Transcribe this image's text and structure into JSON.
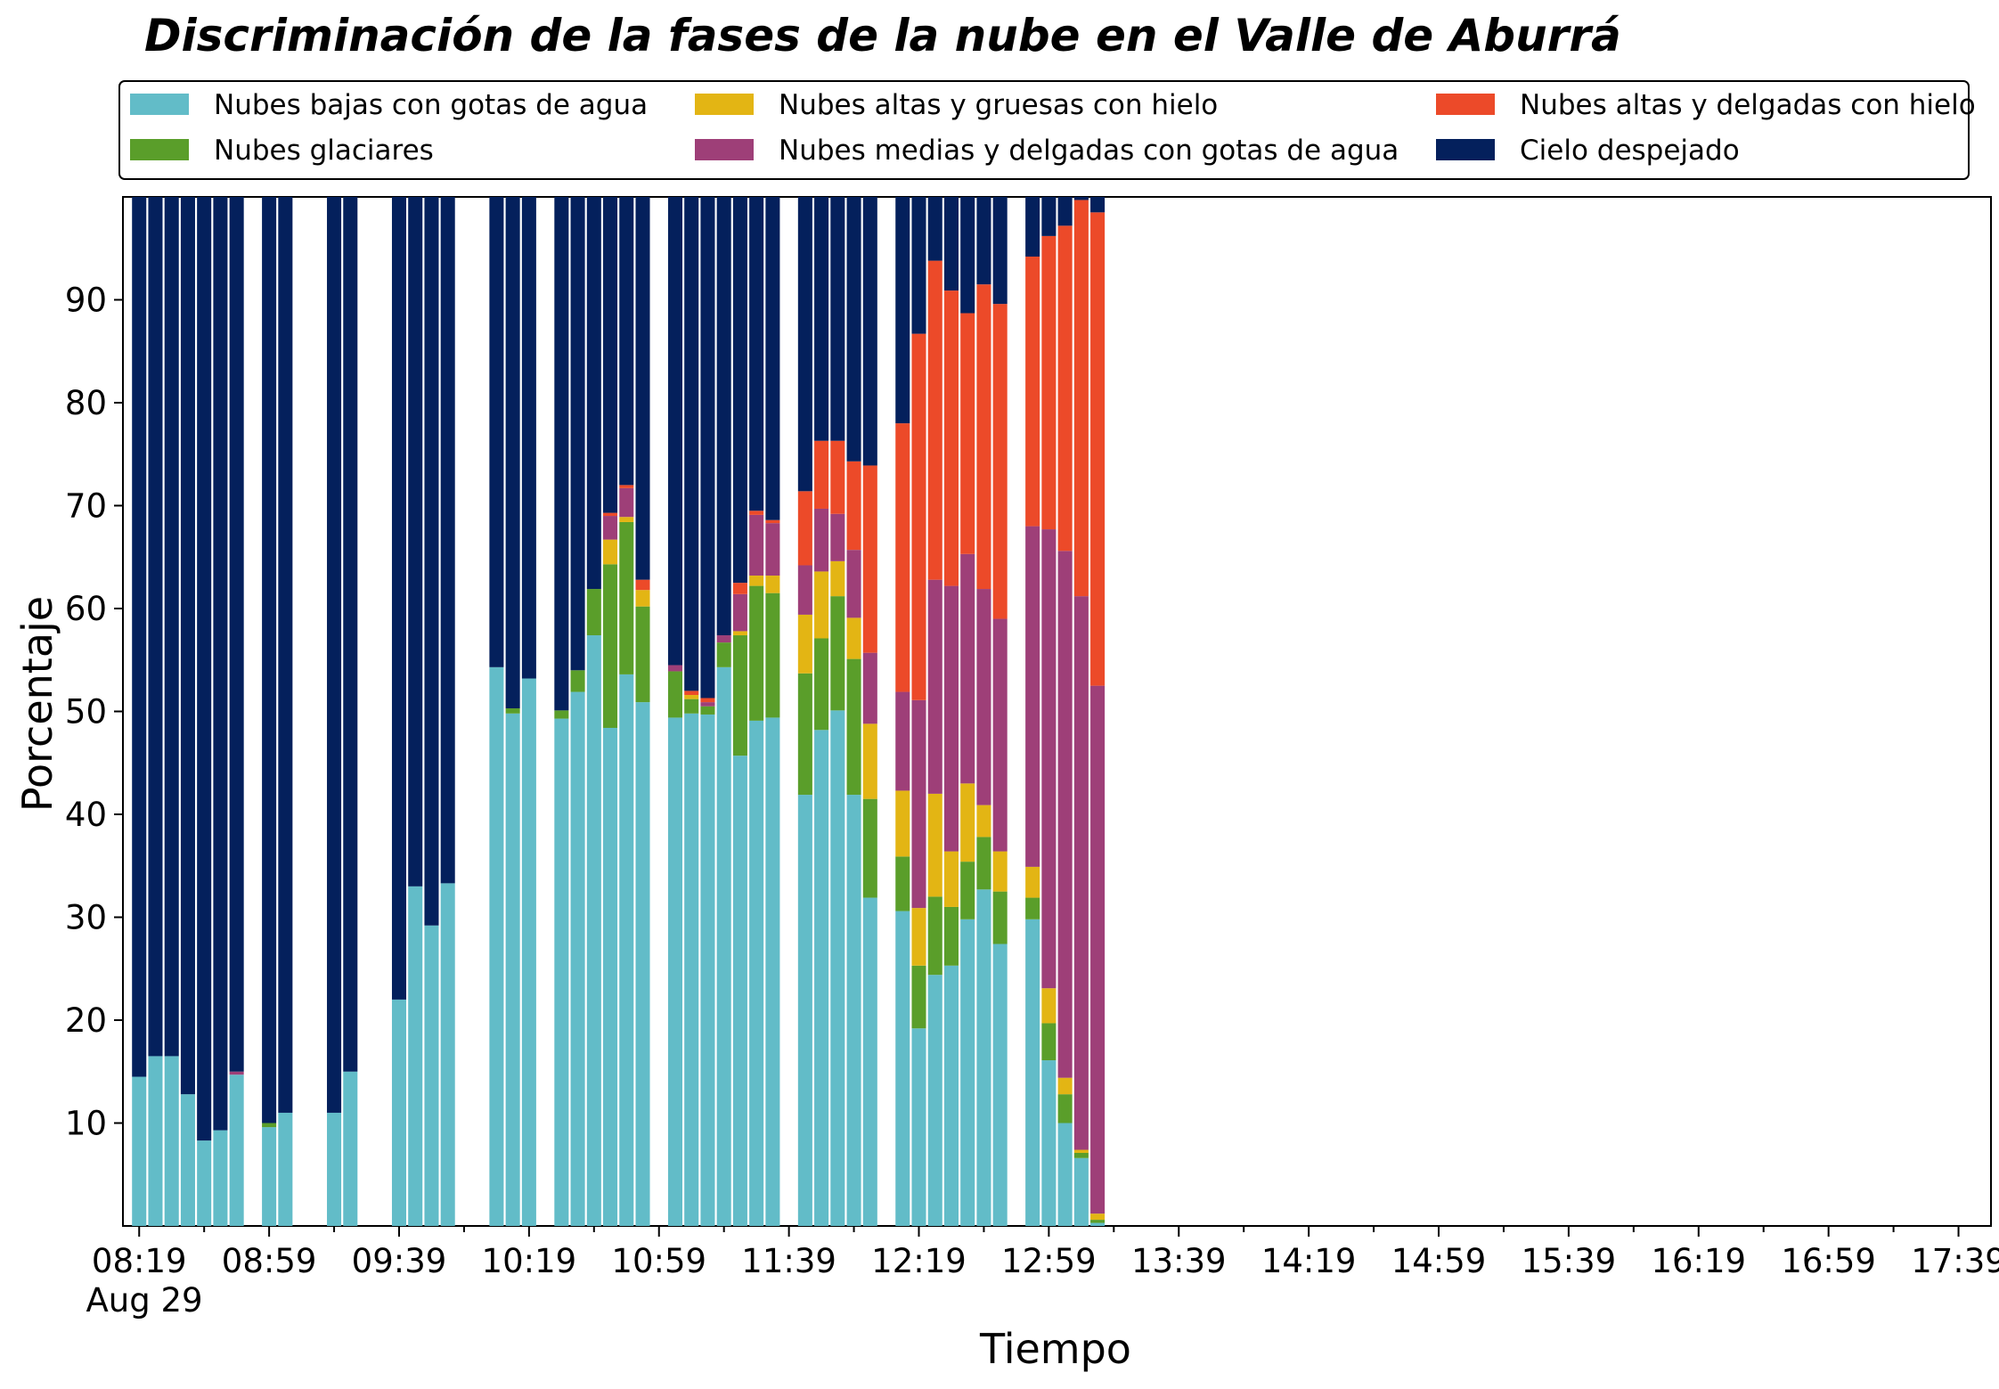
{
  "chart_data": {
    "type": "bar",
    "stacked": true,
    "title": "Discriminación de la fases de la nube en el Valle de Aburrá",
    "xlabel": "Tiempo",
    "ylabel": "Porcentaje",
    "ylim": [
      0,
      100
    ],
    "yticks": [
      10,
      20,
      30,
      40,
      50,
      60,
      70,
      80,
      90
    ],
    "x_time_range": [
      "08:14",
      "17:49"
    ],
    "x_interval_minutes": 5,
    "x_tick_labels": [
      "08:19",
      "08:59",
      "09:39",
      "10:19",
      "10:59",
      "11:39",
      "12:19",
      "12:59",
      "13:39",
      "14:19",
      "14:59",
      "15:39",
      "16:19",
      "16:59",
      "17:39"
    ],
    "x_date_label": "Aug 29",
    "grid": false,
    "legend_position": "top",
    "x": [
      "08:19",
      "08:24",
      "08:29",
      "08:34",
      "08:39",
      "08:44",
      "08:49",
      "08:59",
      "09:04",
      "09:19",
      "09:24",
      "09:39",
      "09:44",
      "09:49",
      "09:54",
      "10:09",
      "10:14",
      "10:19",
      "10:29",
      "10:34",
      "10:39",
      "10:44",
      "10:49",
      "10:54",
      "11:04",
      "11:09",
      "11:14",
      "11:19",
      "11:24",
      "11:29",
      "11:34",
      "11:44",
      "11:49",
      "11:54",
      "11:59",
      "12:04",
      "12:14",
      "12:19",
      "12:24",
      "12:29",
      "12:34",
      "12:39",
      "12:44",
      "12:54",
      "12:59",
      "13:04",
      "13:09",
      "13:14",
      "13:19",
      "13:24",
      "13:29",
      "13:34",
      "13:39",
      "13:44",
      "13:49",
      "13:54",
      "13:59",
      "14:04",
      "14:09",
      "14:14",
      "14:19",
      "14:24",
      "14:29",
      "14:34",
      "14:39",
      "14:44",
      "14:49",
      "14:54",
      "14:59",
      "15:04"
    ],
    "series": [
      {
        "name": "Nubes bajas con gotas de agua",
        "color": "#62BCC8",
        "values": [
          14.5,
          16.5,
          16.5,
          12.8,
          8.3,
          9.3,
          14.7,
          9.6,
          11.0,
          11.0,
          15.0,
          22.0,
          33.0,
          29.2,
          33.3,
          54.3,
          49.8,
          53.2,
          49.3,
          51.9,
          57.4,
          48.4,
          53.6,
          50.9,
          49.4,
          49.8,
          49.7,
          54.3,
          45.7,
          49.1,
          49.4,
          41.9,
          48.2,
          50.1,
          41.9,
          31.9,
          30.6,
          19.2,
          24.4,
          25.3,
          29.8,
          32.7,
          27.4,
          29.8,
          16.1,
          10.0,
          6.6,
          0.3,
          0,
          0,
          0,
          0,
          0,
          0,
          0,
          0,
          0,
          0,
          0,
          0,
          0,
          0,
          0,
          0,
          0,
          0,
          0,
          0,
          0,
          0
        ]
      },
      {
        "name": "Nubes glaciares",
        "color": "#5A9E2A",
        "values": [
          0,
          0,
          0,
          0,
          0,
          0,
          0,
          0.4,
          0,
          0,
          0,
          0,
          0,
          0,
          0,
          0,
          0.5,
          0,
          0.8,
          2.1,
          4.5,
          15.9,
          14.8,
          9.3,
          4.5,
          1.4,
          0.8,
          2.4,
          11.7,
          13.1,
          12.1,
          11.8,
          8.9,
          11.1,
          13.2,
          9.6,
          5.3,
          6.1,
          7.6,
          5.7,
          5.6,
          5.1,
          5.1,
          2.1,
          3.6,
          2.8,
          0.5,
          0.3,
          0,
          0,
          0,
          0,
          0,
          0,
          0,
          0,
          0,
          0,
          0,
          0,
          0,
          0,
          0,
          0,
          0,
          0,
          0,
          0,
          0,
          0
        ]
      },
      {
        "name": "Nubes altas y gruesas con hielo",
        "color": "#E3B514",
        "values": [
          0,
          0,
          0,
          0,
          0,
          0,
          0,
          0,
          0,
          0,
          0,
          0,
          0,
          0,
          0,
          0,
          0,
          0,
          0,
          0,
          0,
          2.4,
          0.5,
          1.6,
          0,
          0.4,
          0,
          0,
          0.4,
          1.0,
          1.7,
          5.7,
          6.5,
          3.4,
          4.0,
          7.3,
          6.4,
          5.6,
          10.0,
          5.4,
          7.6,
          3.1,
          3.9,
          3.0,
          3.4,
          1.6,
          0.3,
          0.6,
          0,
          0,
          0,
          0,
          0,
          0,
          0,
          0,
          0,
          0,
          0,
          0,
          0,
          0,
          0,
          0,
          0,
          0,
          0,
          0,
          0,
          0
        ]
      },
      {
        "name": "Nubes medias y delgadas con gotas de agua",
        "color": "#9E3F78",
        "values": [
          0,
          0,
          0,
          0,
          0,
          0,
          0.3,
          0,
          0,
          0,
          0,
          0,
          0,
          0,
          0,
          0,
          0,
          0,
          0,
          0,
          0,
          2.3,
          2.8,
          0,
          0.6,
          0,
          0.4,
          0.7,
          3.6,
          5.9,
          5.1,
          4.8,
          6.1,
          4.6,
          6.6,
          6.9,
          9.6,
          20.2,
          20.8,
          25.8,
          22.3,
          21.0,
          22.6,
          33.1,
          44.6,
          51.2,
          53.8,
          51.3,
          0,
          0,
          0,
          0,
          0,
          0,
          0,
          0,
          0,
          0,
          0,
          0,
          0,
          0,
          0,
          0,
          0,
          0,
          0,
          0,
          0,
          0
        ]
      },
      {
        "name": "Nubes altas y delgadas con hielo",
        "color": "#EC4A29",
        "values": [
          0,
          0,
          0,
          0,
          0,
          0,
          0,
          0,
          0,
          0,
          0,
          0,
          0,
          0,
          0,
          0,
          0,
          0,
          0,
          0,
          0,
          0.3,
          0.3,
          1.0,
          0,
          0.4,
          0.4,
          0,
          1.1,
          0.4,
          0.3,
          7.2,
          6.6,
          7.1,
          8.6,
          18.2,
          26.1,
          35.6,
          31.0,
          28.7,
          23.4,
          29.6,
          30.6,
          26.2,
          28.5,
          31.6,
          38.5,
          46.0,
          0,
          0,
          0,
          0,
          0,
          0,
          0,
          0,
          0,
          0,
          0,
          0,
          0,
          0,
          0,
          0,
          0,
          0,
          0,
          0,
          0,
          0
        ]
      },
      {
        "name": "Cielo despejado",
        "color": "#04205C",
        "values": [
          85.5,
          83.5,
          83.5,
          87.2,
          91.7,
          90.7,
          85.0,
          90.0,
          89.0,
          89.0,
          85.0,
          78.0,
          67.0,
          70.8,
          66.7,
          45.7,
          49.7,
          46.8,
          49.9,
          46.0,
          38.1,
          30.7,
          28.0,
          37.2,
          45.5,
          48.0,
          48.7,
          42.6,
          37.5,
          30.5,
          31.4,
          28.6,
          23.7,
          23.7,
          25.7,
          26.1,
          22.0,
          13.3,
          6.2,
          9.1,
          11.3,
          8.5,
          10.4,
          5.8,
          3.8,
          2.8,
          0.3,
          1.5,
          0,
          0,
          0,
          0,
          0,
          0,
          0,
          0,
          0,
          0,
          0,
          0,
          0,
          0,
          0,
          0,
          0,
          0,
          0,
          0,
          0,
          0
        ]
      }
    ]
  }
}
